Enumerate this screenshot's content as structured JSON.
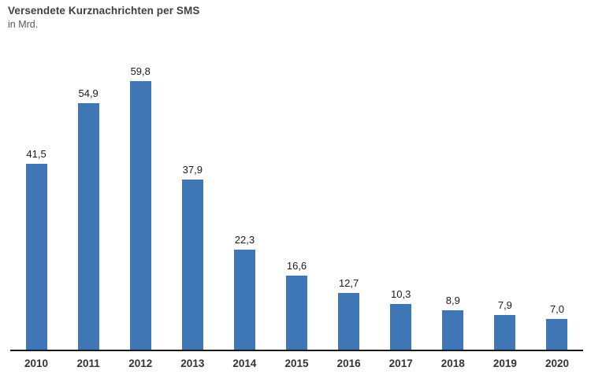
{
  "header": {
    "title": "Versendete Kurznachrichten per SMS",
    "subtitle": "in Mrd."
  },
  "chart_data": {
    "type": "bar",
    "title": "Versendete Kurznachrichten per SMS",
    "subtitle": "in Mrd.",
    "categories": [
      "2010",
      "2011",
      "2012",
      "2013",
      "2014",
      "2015",
      "2016",
      "2017",
      "2018",
      "2019",
      "2020"
    ],
    "values": [
      41.5,
      54.9,
      59.8,
      37.9,
      22.3,
      16.6,
      12.7,
      10.3,
      8.9,
      7.9,
      7.0
    ],
    "value_labels": [
      "41,5",
      "54,9",
      "59,8",
      "37,9",
      "22,3",
      "16,6",
      "12,7",
      "10,3",
      "8,9",
      "7,9",
      "7,0"
    ],
    "xlabel": "",
    "ylabel": "in Mrd.",
    "ylim": [
      0,
      65
    ],
    "grid": false,
    "legend": "none",
    "data_labels": "above bars, comma decimal separator",
    "colors": {
      "bar": "#3E76B6",
      "axis": "#1a1a1a",
      "title": "#404040",
      "subtitle": "#595959",
      "value_label": "#1a1a1a",
      "category_label": "#333333",
      "background": "#ffffff"
    }
  }
}
